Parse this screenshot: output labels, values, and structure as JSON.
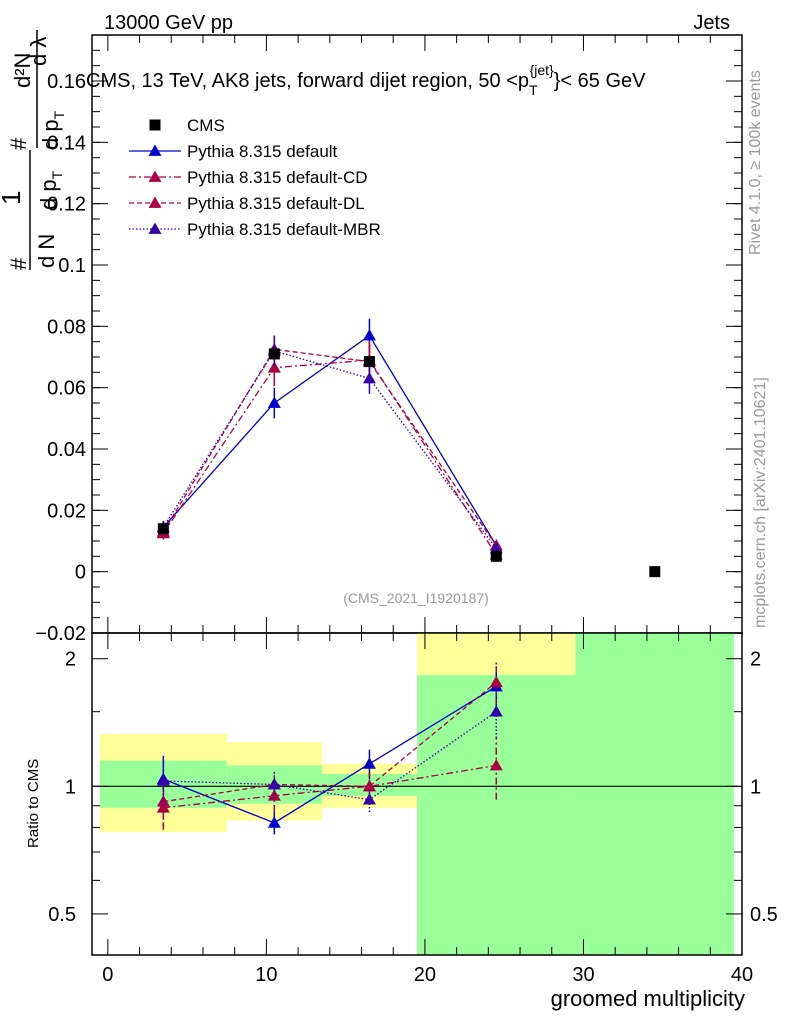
{
  "header": {
    "left": "13000 GeV pp",
    "right": "Jets"
  },
  "watermarks": {
    "rivet": "Rivet 4.1.0, ≥ 100k events",
    "mcplots": "mcplots.cern.ch [arXiv:2401.10621]"
  },
  "chart_data": [
    {
      "type": "scatter",
      "panel": "main",
      "title": "CMS, 13 TeV, AK8 jets, forward dijet region, 50 <p_T^{jet}< 65 GeV",
      "title_parts": {
        "before": "CMS, 13 TeV, AK8 jets, forward dijet region, 50 <p",
        "sub": "T",
        "sup": "{jet}",
        "after": "}< 65 GeV"
      },
      "ylabel": "1/dN/dp_T # d^2N/dp_T # dλ",
      "ylabel_parts": {
        "one": "1",
        "dn": "d N",
        "hash": "#",
        "dpt": "d p",
        "t": "T",
        "d2n": "d²N",
        "dpt2": "d p",
        "dl": "d λ"
      },
      "xlim": [
        -1,
        40
      ],
      "ylim": [
        -0.02,
        0.175
      ],
      "yticks": [
        -0.02,
        0,
        0.02,
        0.04,
        0.06,
        0.08,
        0.1,
        0.12,
        0.14,
        0.16
      ],
      "ytick_labels": [
        "−0.02",
        "0",
        "0.02",
        "0.04",
        "0.06",
        "0.08",
        "0.1",
        "0.12",
        "0.14",
        "0.16"
      ],
      "analysis_label": "(CMS_2021_I1920187)",
      "data": {
        "name": "CMS",
        "x": [
          3.5,
          10.5,
          16.5,
          24.5,
          34.5
        ],
        "y": [
          0.014,
          0.071,
          0.0685,
          0.005,
          0.0
        ]
      },
      "series": [
        {
          "name": "Pythia 8.315 default",
          "color": "#0000cc",
          "dash": "",
          "x": [
            3.5,
            10.5,
            16.5,
            24.5
          ],
          "y": [
            0.0145,
            0.055,
            0.077,
            0.0085
          ],
          "err": [
            0.002,
            0.005,
            0.0055,
            0.001
          ]
        },
        {
          "name": "Pythia 8.315 default-CD",
          "color": "#aa0044",
          "dash": "7,3,2,3",
          "x": [
            3.5,
            10.5,
            16.5,
            24.5
          ],
          "y": [
            0.0125,
            0.0665,
            0.069,
            0.0055
          ],
          "err": [
            0.002,
            0.006,
            0.006,
            0.001
          ]
        },
        {
          "name": "Pythia 8.315 default-DL",
          "color": "#aa0044",
          "dash": "5,3",
          "x": [
            3.5,
            10.5,
            16.5,
            24.5
          ],
          "y": [
            0.013,
            0.0725,
            0.0685,
            0.0085
          ],
          "err": [
            0.002,
            0.0045,
            0.0055,
            0.001
          ]
        },
        {
          "name": "Pythia 8.315 default-MBR",
          "color": "#3300aa",
          "dash": "1.5,2",
          "x": [
            3.5,
            10.5,
            16.5,
            24.5
          ],
          "y": [
            0.0145,
            0.072,
            0.063,
            0.0075
          ],
          "err": [
            0.002,
            0.005,
            0.005,
            0.001
          ]
        }
      ]
    },
    {
      "type": "scatter",
      "panel": "ratio",
      "ylabel": "Ratio to CMS",
      "xlabel": "groomed multiplicity",
      "xlim": [
        -1,
        40
      ],
      "ylim": [
        0.4,
        2.3
      ],
      "yscale": "log",
      "yticks": [
        0.5,
        1,
        2
      ],
      "ytick_labels": [
        "0.5",
        "1",
        "2"
      ],
      "xticks": [
        0,
        10,
        20,
        30,
        40
      ],
      "xtick_labels": [
        "0",
        "10",
        "20",
        "30",
        "40"
      ],
      "bands": [
        {
          "x0": -0.5,
          "x1": 7.5,
          "yellow": [
            0.78,
            1.33
          ],
          "green": [
            0.89,
            1.15
          ]
        },
        {
          "x0": 7.5,
          "x1": 13.5,
          "yellow": [
            0.83,
            1.27
          ],
          "green": [
            0.91,
            1.12
          ]
        },
        {
          "x0": 13.5,
          "x1": 19.5,
          "yellow": [
            0.89,
            1.13
          ],
          "green": [
            0.95,
            1.07
          ]
        },
        {
          "x0": 19.5,
          "x1": 29.5,
          "yellow": [
            0.4,
            2.3
          ],
          "green": [
            0.4,
            1.83
          ]
        },
        {
          "x0": 29.5,
          "x1": 39.5,
          "yellow": [
            0.4,
            2.3
          ],
          "green": [
            0.4,
            2.3
          ]
        }
      ],
      "series": [
        {
          "name": "Pythia 8.315 default",
          "color": "#0000cc",
          "dash": "",
          "x": [
            3.5,
            10.5,
            16.5,
            24.5
          ],
          "y": [
            1.04,
            0.82,
            1.13,
            1.72
          ],
          "err": [
            0.14,
            0.05,
            0.09,
            0.2
          ]
        },
        {
          "name": "Pythia 8.315 default-CD",
          "color": "#aa0044",
          "dash": "7,3,2,3",
          "x": [
            3.5,
            10.5,
            16.5,
            24.5
          ],
          "y": [
            0.89,
            0.95,
            1.0,
            1.12
          ],
          "err": [
            0.1,
            0.08,
            0.08,
            0.19
          ]
        },
        {
          "name": "Pythia 8.315 default-DL",
          "color": "#aa0044",
          "dash": "5,3",
          "x": [
            3.5,
            10.5,
            16.5,
            24.5
          ],
          "y": [
            0.92,
            1.01,
            1.0,
            1.76
          ],
          "err": [
            0.12,
            0.07,
            0.08,
            0.2
          ]
        },
        {
          "name": "Pythia 8.315 default-MBR",
          "color": "#3300aa",
          "dash": "1.5,2",
          "x": [
            3.5,
            10.5,
            16.5,
            24.5
          ],
          "y": [
            1.03,
            1.01,
            0.93,
            1.5
          ],
          "err": [
            0.13,
            0.07,
            0.06,
            0.2
          ]
        }
      ]
    }
  ]
}
